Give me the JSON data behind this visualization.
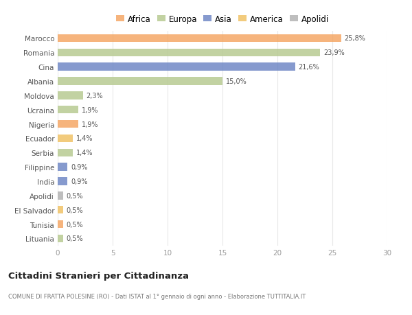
{
  "categories": [
    "Marocco",
    "Romania",
    "Cina",
    "Albania",
    "Moldova",
    "Ucraina",
    "Nigeria",
    "Ecuador",
    "Serbia",
    "Filippine",
    "India",
    "Apolidi",
    "El Salvador",
    "Tunisia",
    "Lituania"
  ],
  "values": [
    25.8,
    23.9,
    21.6,
    15.0,
    2.3,
    1.9,
    1.9,
    1.4,
    1.4,
    0.9,
    0.9,
    0.5,
    0.5,
    0.5,
    0.5
  ],
  "labels": [
    "25,8%",
    "23,9%",
    "21,6%",
    "15,0%",
    "2,3%",
    "1,9%",
    "1,9%",
    "1,4%",
    "1,4%",
    "0,9%",
    "0,9%",
    "0,5%",
    "0,5%",
    "0,5%",
    "0,5%"
  ],
  "colors": [
    "#f4a460",
    "#b5c98e",
    "#6b84c4",
    "#b5c98e",
    "#b5c98e",
    "#b5c98e",
    "#f4a460",
    "#f0c060",
    "#b5c98e",
    "#6b84c4",
    "#6b84c4",
    "#b0b0b0",
    "#f0c060",
    "#f4a460",
    "#b5c98e"
  ],
  "legend": [
    {
      "label": "Africa",
      "color": "#f4a460"
    },
    {
      "label": "Europa",
      "color": "#b5c98e"
    },
    {
      "label": "Asia",
      "color": "#6b84c4"
    },
    {
      "label": "America",
      "color": "#f0c060"
    },
    {
      "label": "Apolidi",
      "color": "#b0b0b0"
    }
  ],
  "title": "Cittadini Stranieri per Cittadinanza",
  "subtitle": "COMUNE DI FRATTA POLESINE (RO) - Dati ISTAT al 1° gennaio di ogni anno - Elaborazione TUTTITALIA.IT",
  "xlim": [
    0,
    30
  ],
  "xticks": [
    0,
    5,
    10,
    15,
    20,
    25,
    30
  ],
  "bg_color": "#ffffff",
  "grid_color": "#e8e8e8",
  "bar_height": 0.55
}
